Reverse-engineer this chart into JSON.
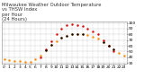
{
  "title": "Milwaukee Weather Outdoor Temperature\nvs THSW Index\nper Hour\n(24 Hours)",
  "background_color": "#ffffff",
  "plot_bg_color": "#ffffff",
  "grid_color": "#c8c8c8",
  "ylim": [
    28,
    102
  ],
  "xlim": [
    -0.5,
    23.5
  ],
  "yticks": [
    30,
    40,
    50,
    60,
    70,
    80,
    90,
    100
  ],
  "ytick_labels": [
    "30",
    "40",
    "50",
    "60",
    "70",
    "80",
    "90",
    "100"
  ],
  "xtick_labels": [
    "0",
    "1",
    "2",
    "3",
    "4",
    "5",
    "6",
    "7",
    "8",
    "9",
    "10",
    "11",
    "12",
    "13",
    "14",
    "15",
    "16",
    "17",
    "18",
    "19",
    "20",
    "21",
    "22",
    "23"
  ],
  "hours": [
    0,
    1,
    2,
    3,
    4,
    5,
    6,
    7,
    8,
    9,
    10,
    11,
    12,
    13,
    14,
    15,
    16,
    17,
    18,
    19,
    20,
    21,
    22,
    23
  ],
  "temp": [
    36,
    35,
    34,
    33,
    32,
    32,
    36,
    43,
    52,
    61,
    68,
    74,
    78,
    80,
    81,
    80,
    79,
    76,
    72,
    66,
    60,
    54,
    48,
    43
  ],
  "thsw": [
    null,
    null,
    null,
    null,
    null,
    null,
    null,
    40,
    54,
    68,
    80,
    90,
    96,
    98,
    97,
    94,
    90,
    86,
    80,
    70,
    60,
    51,
    null,
    null
  ],
  "temp_color": "#ff8800",
  "thsw_color": "#dd0000",
  "black_hours": [
    8,
    9,
    11,
    12,
    13,
    14,
    15,
    19,
    20,
    21
  ],
  "marker_size": 3,
  "title_fontsize": 3.8,
  "tick_fontsize": 3.2,
  "title_color": "#333333"
}
